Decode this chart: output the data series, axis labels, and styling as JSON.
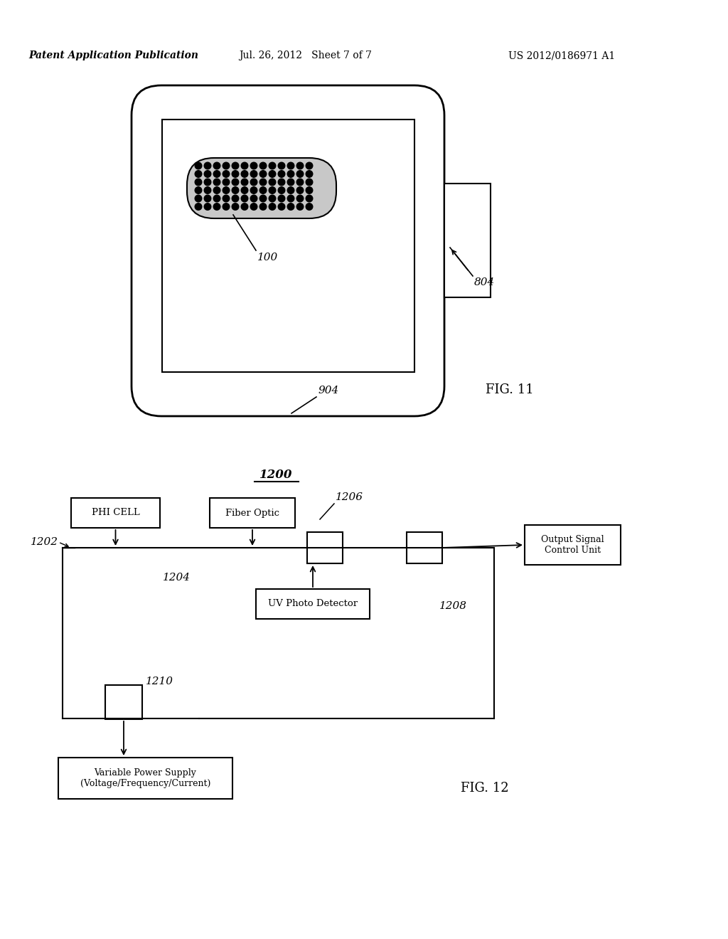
{
  "bg_color": "#ffffff",
  "header_left": "Patent Application Publication",
  "header_center": "Jul. 26, 2012   Sheet 7 of 7",
  "header_right": "US 2012/0186971 A1",
  "fig11_label": "FIG. 11",
  "fig12_label": "FIG. 12",
  "label_1200": "1200",
  "label_100": "100",
  "label_804": "804",
  "label_904": "904",
  "label_1202": "1202",
  "label_1204": "1204",
  "label_1206": "1206",
  "label_1208": "1208",
  "label_1210": "1210",
  "box_phi_cell": "PHI CELL",
  "box_fiber_optic": "Fiber Optic",
  "box_uv_detector": "UV Photo Detector",
  "box_output_signal": "Output Signal\nControl Unit",
  "box_power_supply": "Variable Power Supply\n(Voltage/Frequency/Current)"
}
